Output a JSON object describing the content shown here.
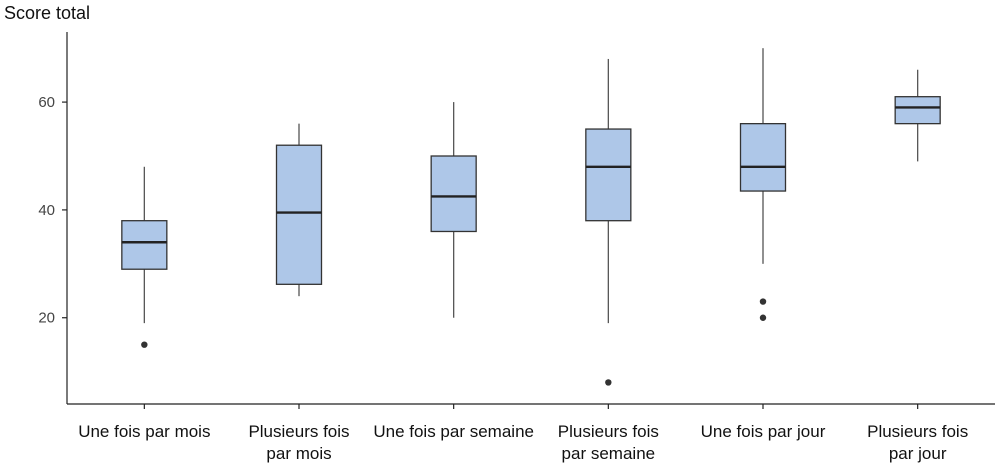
{
  "chart_data": {
    "type": "boxplot",
    "ylabel": "Score total",
    "xlabel": "",
    "ylim": [
      4,
      73
    ],
    "yticks": [
      20,
      40,
      60
    ],
    "grid": false,
    "box_color": "#aec7e8",
    "categories": [
      {
        "label_lines": [
          "Une fois par mois"
        ],
        "whisker_low": 19,
        "q1": 29,
        "median": 34,
        "q3": 38,
        "whisker_high": 48,
        "outliers": [
          15
        ]
      },
      {
        "label_lines": [
          "Plusieurs fois",
          "par mois"
        ],
        "whisker_low": 24,
        "q1": 26.2,
        "median": 39.5,
        "q3": 52,
        "whisker_high": 56,
        "outliers": []
      },
      {
        "label_lines": [
          "Une fois par semaine"
        ],
        "whisker_low": 20,
        "q1": 36,
        "median": 42.5,
        "q3": 50,
        "whisker_high": 60,
        "outliers": []
      },
      {
        "label_lines": [
          "Plusieurs fois",
          "par semaine"
        ],
        "whisker_low": 19,
        "q1": 38,
        "median": 48,
        "q3": 55,
        "whisker_high": 68,
        "outliers": [
          8
        ]
      },
      {
        "label_lines": [
          "Une fois par jour"
        ],
        "whisker_low": 30,
        "q1": 43.5,
        "median": 48,
        "q3": 56,
        "whisker_high": 70,
        "outliers": [
          23,
          20
        ]
      },
      {
        "label_lines": [
          "Plusieurs fois",
          "par jour"
        ],
        "whisker_low": 49,
        "q1": 56,
        "median": 59,
        "q3": 61,
        "whisker_high": 66,
        "outliers": []
      }
    ]
  }
}
